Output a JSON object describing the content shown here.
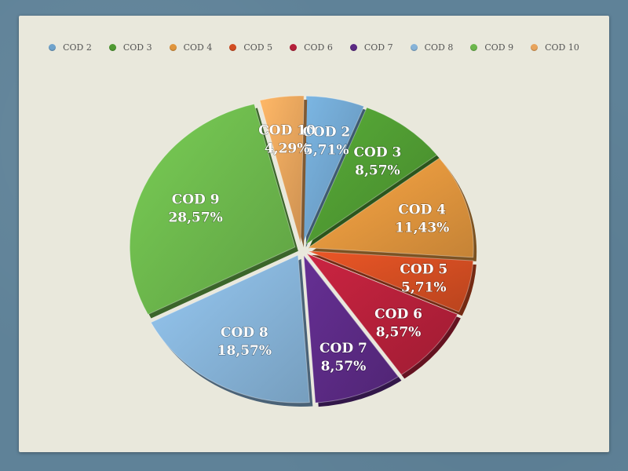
{
  "chart_data": {
    "type": "pie",
    "legend_position": "top",
    "slices": [
      {
        "name": "COD 2",
        "value": 5.71,
        "label": "5,71%",
        "color": "#6fa3cc"
      },
      {
        "name": "COD 3",
        "value": 8.57,
        "label": "8,57%",
        "color": "#4f9a32"
      },
      {
        "name": "COD 4",
        "value": 11.43,
        "label": "11,43%",
        "color": "#e0953d"
      },
      {
        "name": "COD 5",
        "value": 5.71,
        "label": "5,71%",
        "color": "#d24d22"
      },
      {
        "name": "COD 6",
        "value": 8.57,
        "label": "8,57%",
        "color": "#b5203a"
      },
      {
        "name": "COD 7",
        "value": 8.57,
        "label": "8,57%",
        "color": "#5b2a84"
      },
      {
        "name": "COD 8",
        "value": 18.57,
        "label": "18,57%",
        "color": "#86b3d8"
      },
      {
        "name": "COD 9",
        "value": 28.57,
        "label": "28,57%",
        "color": "#6cb74c"
      },
      {
        "name": "COD 10",
        "value": 4.29,
        "label": "4,29%",
        "color": "#e8a45c"
      }
    ]
  }
}
